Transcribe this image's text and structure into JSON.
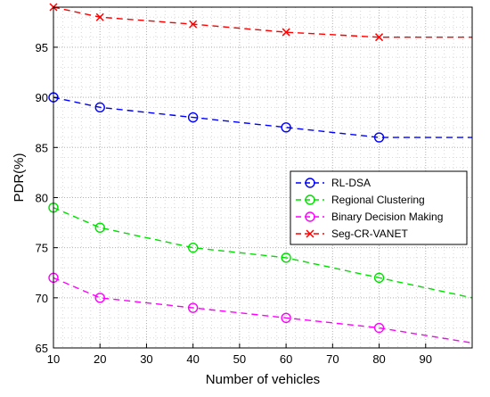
{
  "chart_data": {
    "type": "line",
    "title": "",
    "xlabel": "Number of vehicles",
    "ylabel": "PDR(%)",
    "xlim": [
      10,
      100
    ],
    "ylim": [
      65,
      99
    ],
    "x_ticks": [
      10,
      20,
      30,
      40,
      50,
      60,
      70,
      80,
      90
    ],
    "y_ticks": [
      65,
      70,
      75,
      80,
      85,
      90,
      95
    ],
    "grid": true,
    "legend_position": "right",
    "series": [
      {
        "name": "RL-DSA",
        "color": "#0000ff",
        "marker": "circle",
        "x": [
          10,
          20,
          40,
          60,
          80,
          100
        ],
        "y": [
          90,
          89,
          88,
          87,
          86,
          86
        ],
        "marker_x": [
          10,
          20,
          40,
          60,
          80
        ]
      },
      {
        "name": "Regional Clustering",
        "color": "#00e000",
        "marker": "circle",
        "x": [
          10,
          20,
          40,
          60,
          80,
          100
        ],
        "y": [
          79,
          77,
          75,
          74,
          72,
          70
        ],
        "marker_x": [
          10,
          20,
          40,
          60,
          80
        ]
      },
      {
        "name": "Binary Decision Making",
        "color": "#ff00ff",
        "marker": "circle",
        "x": [
          10,
          20,
          40,
          60,
          80,
          100
        ],
        "y": [
          72,
          70,
          69,
          68,
          67,
          65.5
        ],
        "marker_x": [
          10,
          20,
          40,
          60,
          80
        ]
      },
      {
        "name": "Seg-CR-VANET",
        "color": "#ff0000",
        "marker": "x",
        "x": [
          10,
          20,
          40,
          60,
          80,
          100
        ],
        "y": [
          99,
          98,
          97.3,
          96.5,
          96,
          96
        ],
        "marker_x": [
          10,
          20,
          40,
          60,
          80
        ]
      }
    ]
  }
}
